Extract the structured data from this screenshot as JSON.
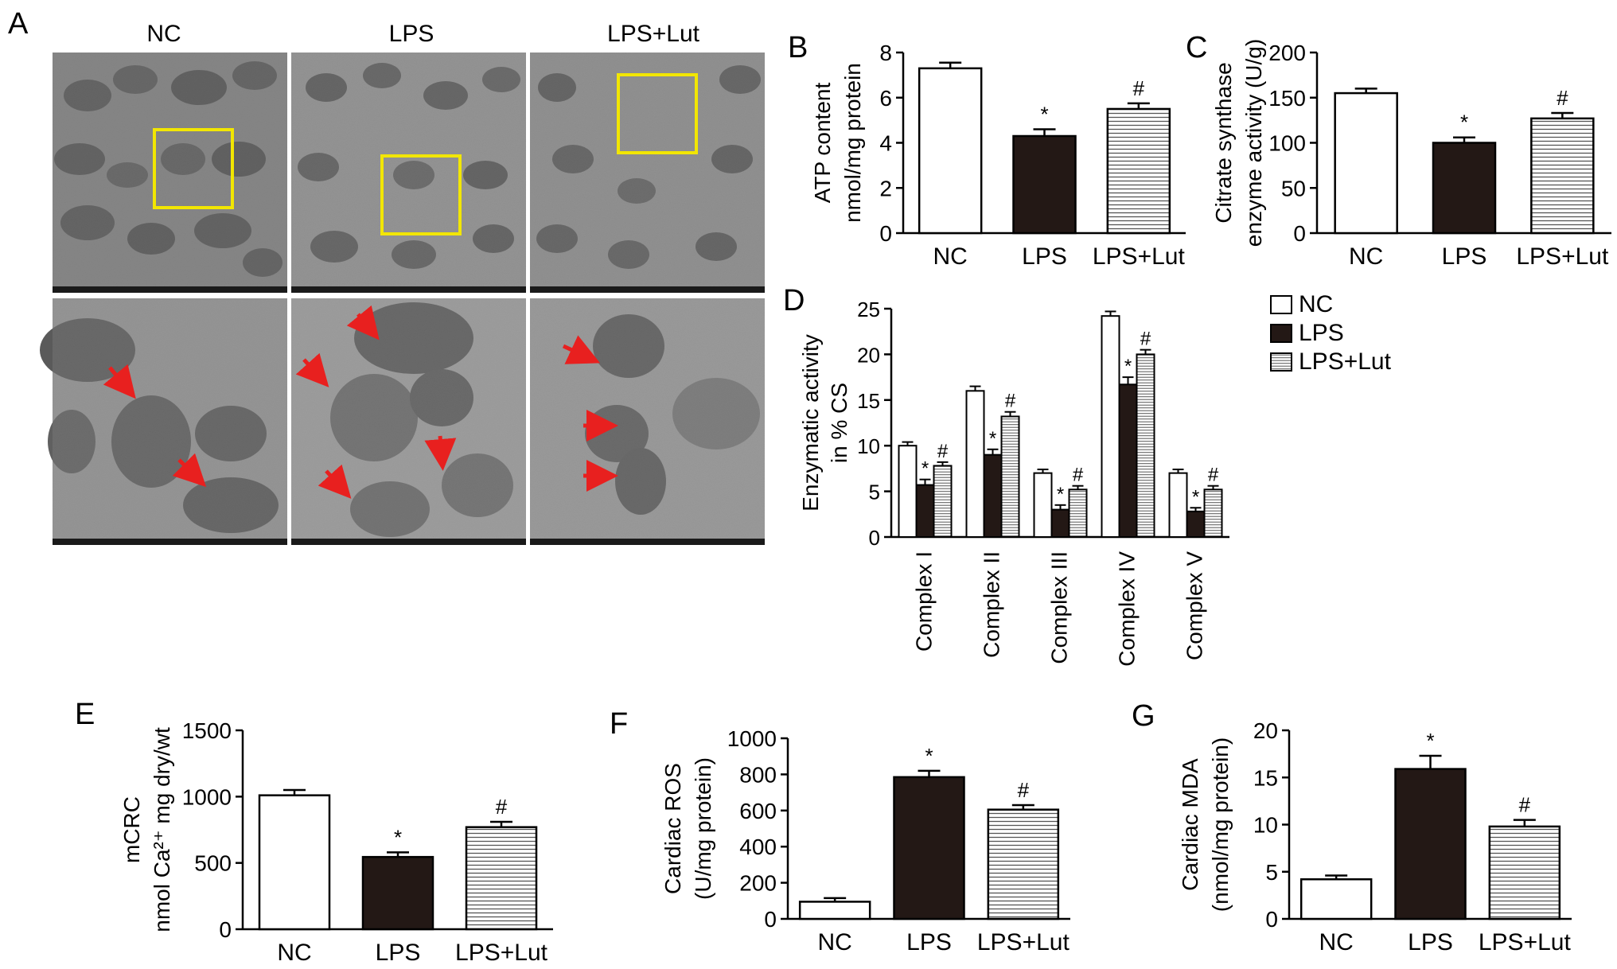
{
  "figure": {
    "colors": {
      "nc": "#ffffff",
      "lps": "#231815",
      "lut_hatch": "#555555",
      "box": "#f2e600",
      "arrow": "#e8201f",
      "axis": "#000000"
    }
  },
  "panel_a": {
    "letter": "A",
    "columns": [
      "NC",
      "LPS",
      "LPS+Lut"
    ],
    "zoom_box_color": "#f2e600",
    "arrow_color": "#e8201f"
  },
  "chart_data": [
    {
      "id": "B",
      "letter": "B",
      "type": "bar",
      "categories": [
        "NC",
        "LPS",
        "LPS+Lut"
      ],
      "values": [
        7.3,
        4.3,
        5.5
      ],
      "errors": [
        0.25,
        0.3,
        0.25
      ],
      "marks": [
        "",
        "*",
        "#"
      ],
      "ylabel": [
        "ATP content",
        "nmol/mg protein"
      ],
      "ylim": [
        0,
        8
      ],
      "yticks": [
        0,
        2,
        4,
        6,
        8
      ],
      "legend": "none",
      "grid": false
    },
    {
      "id": "C",
      "letter": "C",
      "type": "bar",
      "categories": [
        "NC",
        "LPS",
        "LPS+Lut"
      ],
      "values": [
        155,
        100,
        127
      ],
      "errors": [
        5,
        6,
        6
      ],
      "marks": [
        "",
        "*",
        "#"
      ],
      "ylabel": [
        "Citrate synthase",
        "enzyme activity (U/g)"
      ],
      "ylim": [
        0,
        200
      ],
      "yticks": [
        0,
        50,
        100,
        150,
        200
      ],
      "legend": "none",
      "grid": false
    },
    {
      "id": "D",
      "letter": "D",
      "type": "bar",
      "categories": [
        "Complex I",
        "Complex II",
        "Complex III",
        "Complex IV",
        "Complex V"
      ],
      "series": [
        {
          "name": "NC",
          "values": [
            10.0,
            16.0,
            7.0,
            24.2,
            7.0
          ],
          "errors": [
            0.4,
            0.5,
            0.4,
            0.5,
            0.4
          ]
        },
        {
          "name": "LPS",
          "values": [
            5.7,
            9.0,
            3.0,
            16.7,
            2.8
          ],
          "errors": [
            0.6,
            0.6,
            0.5,
            0.8,
            0.4
          ]
        },
        {
          "name": "LPS+Lut",
          "values": [
            7.8,
            13.2,
            5.2,
            20.0,
            5.2
          ],
          "errors": [
            0.4,
            0.5,
            0.4,
            0.5,
            0.4
          ]
        }
      ],
      "marks": [
        "",
        "*",
        "#"
      ],
      "ylabel": [
        "Enzymatic activity",
        "in % CS"
      ],
      "ylim": [
        0,
        25
      ],
      "yticks": [
        0,
        5,
        10,
        15,
        20,
        25
      ],
      "legend": "top-right",
      "grid": false
    },
    {
      "id": "E",
      "letter": "E",
      "type": "bar",
      "categories": [
        "NC",
        "LPS",
        "LPS+Lut"
      ],
      "values": [
        1010,
        545,
        770
      ],
      "errors": [
        40,
        35,
        40
      ],
      "marks": [
        "",
        "*",
        "#"
      ],
      "ylabel": [
        "mCRC",
        "nmol Ca²⁺ mg dry/wt"
      ],
      "ylim": [
        0,
        1500
      ],
      "yticks": [
        0,
        500,
        1000,
        1500
      ],
      "legend": "none",
      "grid": false
    },
    {
      "id": "F",
      "letter": "F",
      "type": "bar",
      "categories": [
        "NC",
        "LPS",
        "LPS+Lut"
      ],
      "values": [
        95,
        785,
        605
      ],
      "errors": [
        20,
        35,
        25
      ],
      "marks": [
        "",
        "*",
        "#"
      ],
      "ylabel": [
        "Cardiac ROS",
        "(U/mg protein)"
      ],
      "ylim": [
        0,
        1000
      ],
      "yticks": [
        0,
        200,
        400,
        600,
        800,
        1000
      ],
      "legend": "none",
      "grid": false
    },
    {
      "id": "G",
      "letter": "G",
      "type": "bar",
      "categories": [
        "NC",
        "LPS",
        "LPS+Lut"
      ],
      "values": [
        4.2,
        15.9,
        9.8
      ],
      "errors": [
        0.4,
        1.4,
        0.7
      ],
      "marks": [
        "",
        "*",
        "#"
      ],
      "ylabel": [
        "Cardiac MDA",
        "(nmol/mg protein)"
      ],
      "ylim": [
        0,
        20
      ],
      "yticks": [
        0,
        5,
        10,
        15,
        20
      ],
      "legend": "none",
      "grid": false
    }
  ]
}
